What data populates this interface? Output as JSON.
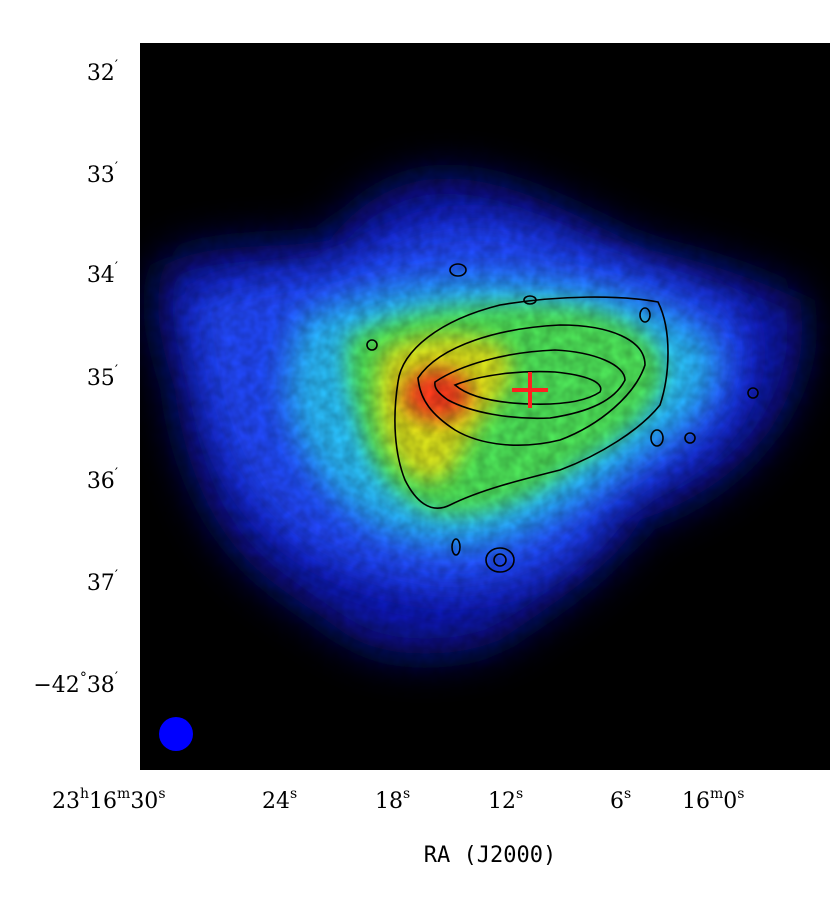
{
  "image": {
    "kind": "astronomical false-colour map with contour overlay",
    "colormap": [
      "#000000",
      "#0a0a9c",
      "#2a4dff",
      "#2fb8ff",
      "#55ee55",
      "#e6e600",
      "#ff4a1a"
    ],
    "contour_color": "#000000",
    "marker_color": "#ff2020",
    "beam_color": "#0000ff"
  },
  "x_axis": {
    "title": "RA (J2000)",
    "ticks": [
      {
        "main": "23",
        "sup1": "h",
        "mid": "16",
        "sup2": "m",
        "end": "30",
        "sup3": "s"
      },
      {
        "main": "24",
        "sup1": "s"
      },
      {
        "main": "18",
        "sup1": "s"
      },
      {
        "main": "12",
        "sup1": "s"
      },
      {
        "main": "6",
        "sup1": "s"
      },
      {
        "main": "16",
        "sup1": "m",
        "mid": "0",
        "sup2": "s"
      }
    ]
  },
  "y_axis": {
    "ticks": [
      {
        "main": "32",
        "sup": "′"
      },
      {
        "main": "33",
        "sup": "′"
      },
      {
        "main": "34",
        "sup": "′"
      },
      {
        "main": "35",
        "sup": "′"
      },
      {
        "main": "36",
        "sup": "′"
      },
      {
        "main": "37",
        "sup": "′"
      },
      {
        "main": "−42",
        "sup": "°",
        "main2": "38",
        "sup2": "′"
      }
    ]
  }
}
